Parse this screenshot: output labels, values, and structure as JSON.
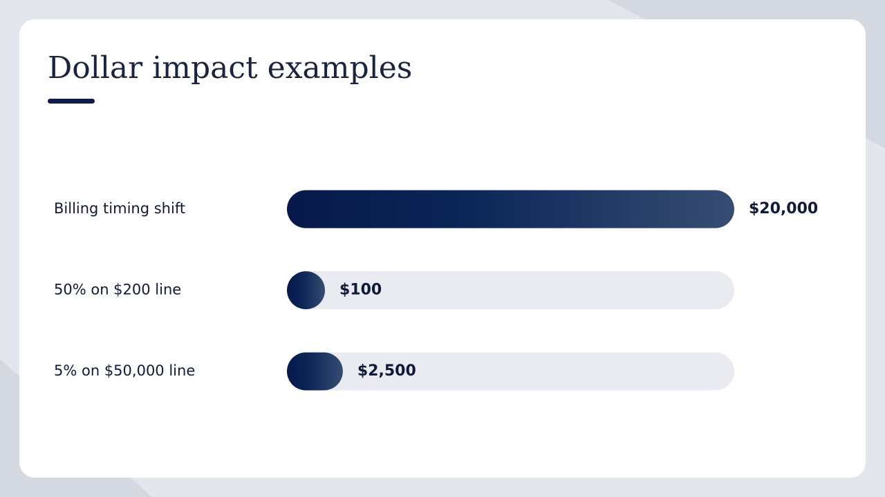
{
  "chart_data": {
    "type": "bar",
    "orientation": "horizontal",
    "title": "Dollar impact examples",
    "categories": [
      "Billing timing shift",
      "50% on $200 line",
      "5% on $50,000 line"
    ],
    "values": [
      20000,
      100,
      2500
    ],
    "value_labels": [
      "$20,000",
      "$100",
      "$2,500"
    ],
    "color": "#0a1f4f"
  }
}
